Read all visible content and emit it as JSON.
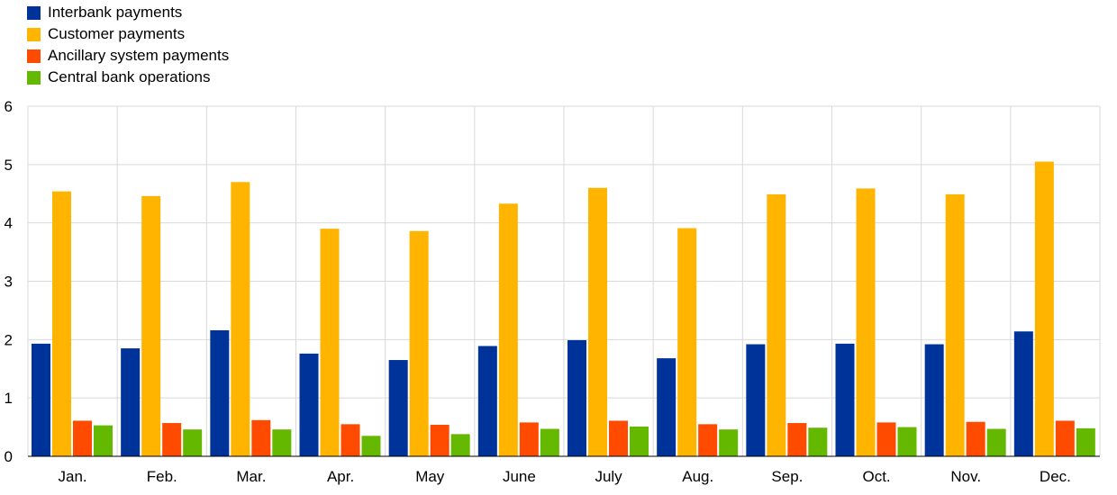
{
  "chart_data": {
    "type": "bar",
    "categories": [
      "Jan.",
      "Feb.",
      "Mar.",
      "Apr.",
      "May",
      "June",
      "July",
      "Aug.",
      "Sep.",
      "Oct.",
      "Nov.",
      "Dec."
    ],
    "series": [
      {
        "name": "Interbank payments",
        "color": "#003399",
        "values": [
          1.93,
          1.85,
          2.16,
          1.76,
          1.65,
          1.89,
          1.99,
          1.68,
          1.92,
          1.93,
          1.92,
          2.14
        ]
      },
      {
        "name": "Customer payments",
        "color": "#FFB400",
        "values": [
          4.54,
          4.46,
          4.7,
          3.9,
          3.86,
          4.33,
          4.6,
          3.91,
          4.49,
          4.59,
          4.49,
          5.05
        ]
      },
      {
        "name": "Ancillary system payments",
        "color": "#FF4B00",
        "values": [
          0.61,
          0.57,
          0.62,
          0.55,
          0.54,
          0.58,
          0.61,
          0.55,
          0.57,
          0.58,
          0.59,
          0.61
        ]
      },
      {
        "name": "Central bank operations",
        "color": "#65B800",
        "values": [
          0.53,
          0.46,
          0.46,
          0.35,
          0.38,
          0.47,
          0.51,
          0.46,
          0.49,
          0.5,
          0.47,
          0.48
        ]
      }
    ],
    "ylim": [
      0,
      6
    ],
    "yticks": [
      "0",
      "1",
      "2",
      "3",
      "4",
      "5",
      "6"
    ],
    "grid": true,
    "legend_position": "top-left"
  }
}
